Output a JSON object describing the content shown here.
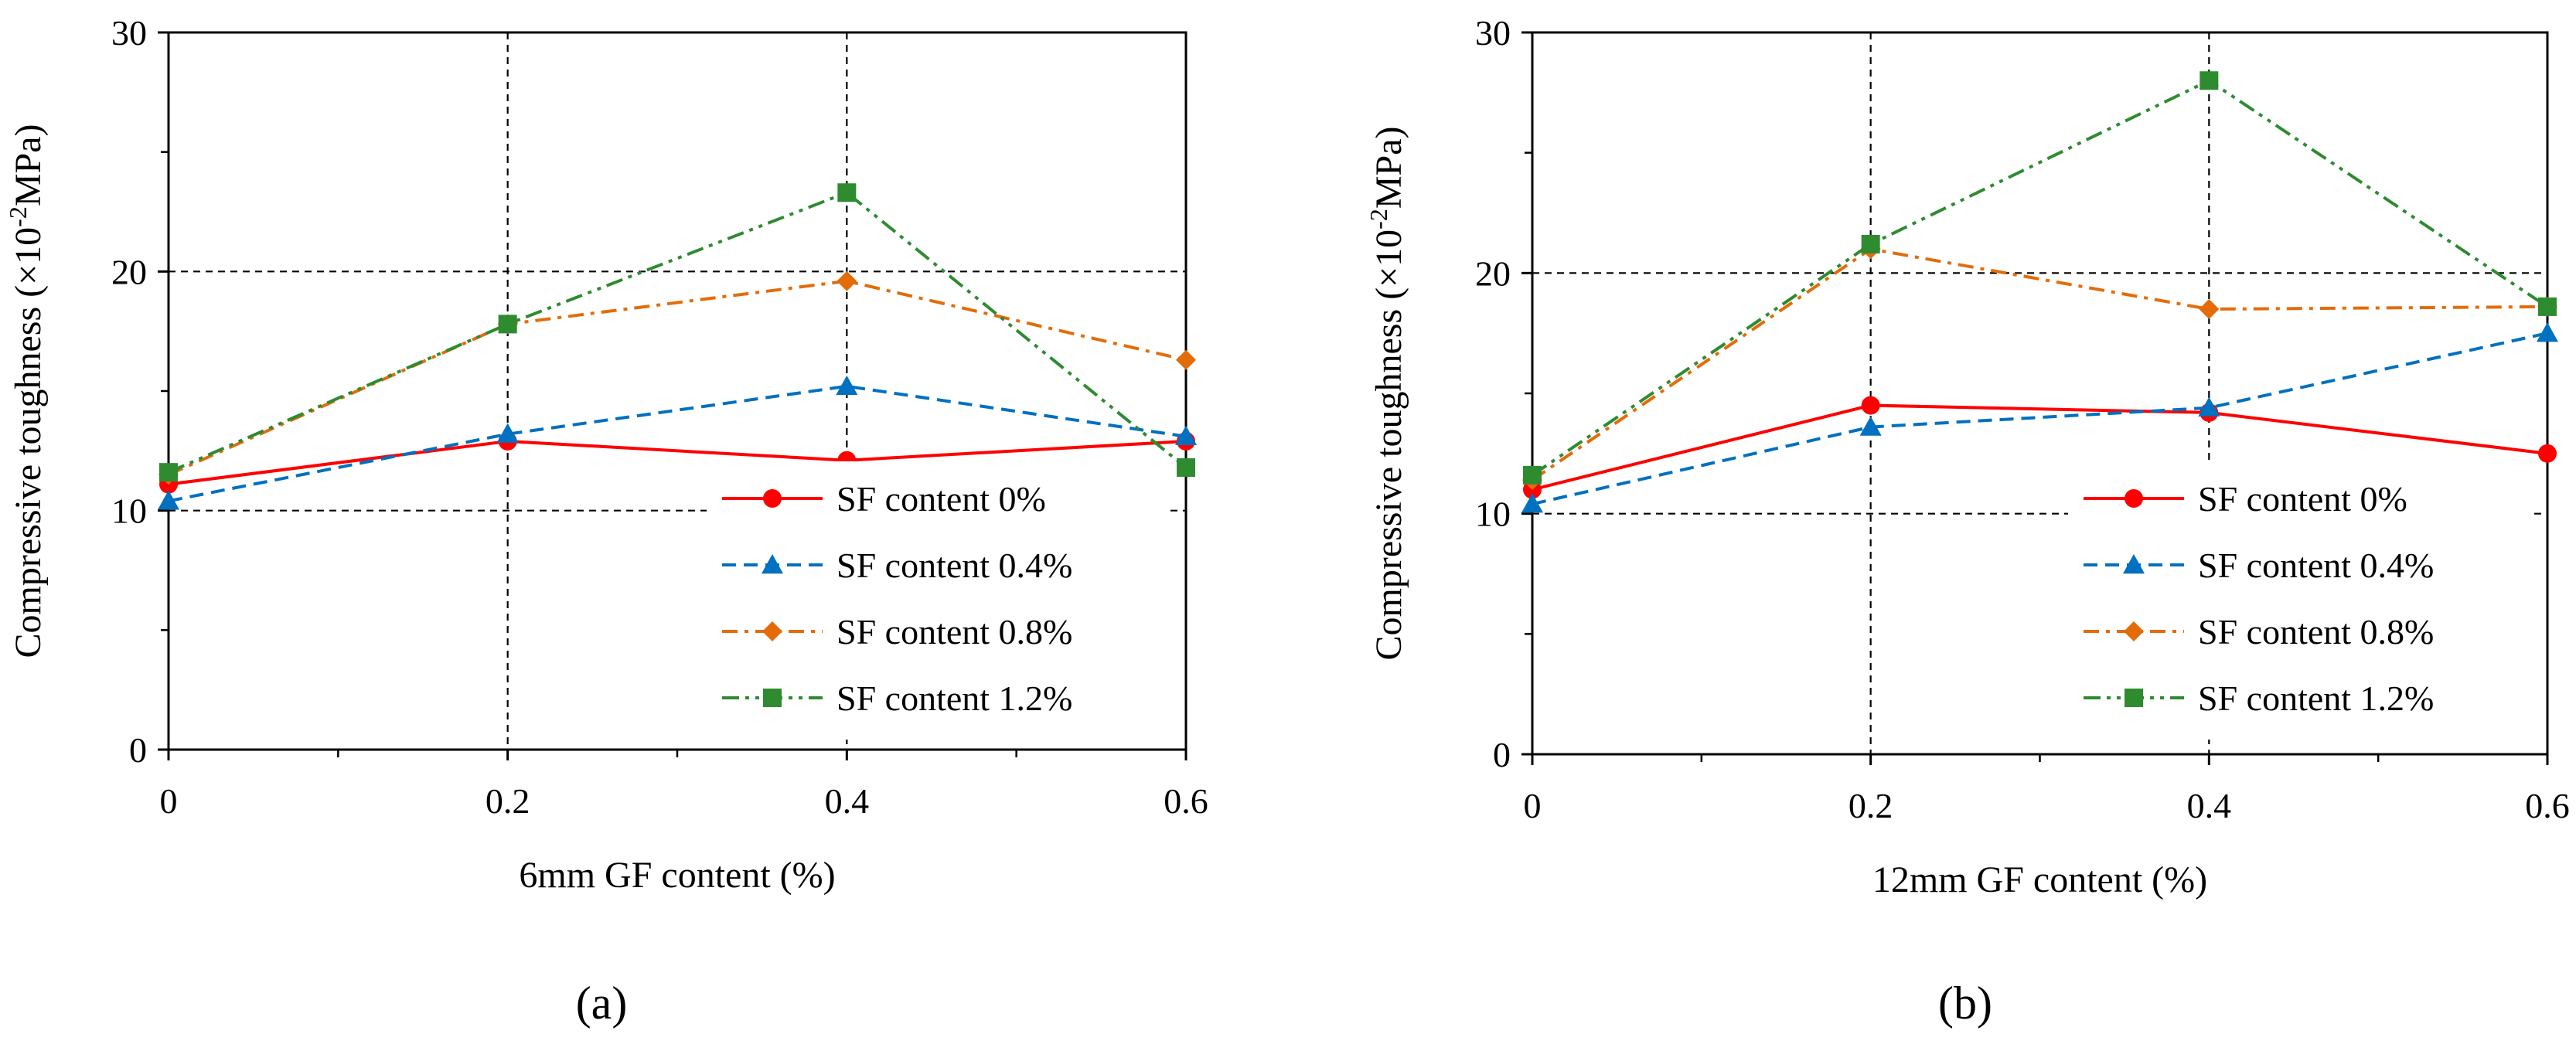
{
  "chart_data": [
    {
      "panel": "(a)",
      "type": "line",
      "xlabel": "6mm GF content (%)",
      "ylabel_main": "Compressive toughness (",
      "ylabel_sym": "×",
      "ylabel_base": "10",
      "ylabel_exp": "-2",
      "ylabel_unit": "MPa)",
      "xlim": [
        0,
        0.6
      ],
      "ylim": [
        0,
        30
      ],
      "x": [
        0,
        0.2,
        0.4,
        0.6
      ],
      "x_tick_labels": [
        "0",
        "0.2",
        "0.4",
        "0.6"
      ],
      "y_ticks": [
        0,
        10,
        20,
        30
      ],
      "y_tick_labels": [
        "0",
        "10",
        "20",
        "30"
      ],
      "grid": true,
      "legend_position": "bottom-right",
      "series": [
        {
          "name": "SF content 0%",
          "color": "#ff0000",
          "marker": "circle",
          "dash": "solid",
          "values": [
            11.1,
            12.9,
            12.1,
            12.9
          ]
        },
        {
          "name": "SF content 0.4%",
          "color": "#0070c0",
          "marker": "triangle",
          "dash": "dash",
          "values": [
            10.4,
            13.2,
            15.2,
            13.1
          ]
        },
        {
          "name": "SF content 0.8%",
          "color": "#e36c09",
          "marker": "diamond",
          "dash": "dashdot",
          "values": [
            11.5,
            17.8,
            19.6,
            16.3
          ]
        },
        {
          "name": "SF content 1.2%",
          "color": "#2e8b30",
          "marker": "square",
          "dash": "dashdotdot",
          "values": [
            11.6,
            17.8,
            23.3,
            11.8
          ]
        }
      ]
    },
    {
      "panel": "(b)",
      "type": "line",
      "xlabel": "12mm GF content (%)",
      "ylabel_main": "Compressive toughness (",
      "ylabel_sym": "×",
      "ylabel_base": "10",
      "ylabel_exp": "-2",
      "ylabel_unit": "MPa)",
      "xlim": [
        0,
        0.6
      ],
      "ylim": [
        0,
        30
      ],
      "x": [
        0,
        0.2,
        0.4,
        0.6
      ],
      "x_tick_labels": [
        "0",
        "0.2",
        "0.4",
        "0.6"
      ],
      "y_ticks": [
        0,
        10,
        20,
        30
      ],
      "y_tick_labels": [
        "0",
        "10",
        "20",
        "30"
      ],
      "grid": true,
      "legend_position": "bottom-right",
      "series": [
        {
          "name": "SF content 0%",
          "color": "#ff0000",
          "marker": "circle",
          "dash": "solid",
          "values": [
            11.0,
            14.5,
            14.2,
            12.5
          ]
        },
        {
          "name": "SF content 0.4%",
          "color": "#0070c0",
          "marker": "triangle",
          "dash": "dash",
          "values": [
            10.4,
            13.6,
            14.4,
            17.5
          ]
        },
        {
          "name": "SF content 0.8%",
          "color": "#e36c09",
          "marker": "diamond",
          "dash": "dashdot",
          "values": [
            11.4,
            21.0,
            18.5,
            18.6
          ]
        },
        {
          "name": "SF content 1.2%",
          "color": "#2e8b30",
          "marker": "square",
          "dash": "dashdotdot",
          "values": [
            11.6,
            21.2,
            28.0,
            18.6
          ]
        }
      ]
    }
  ]
}
